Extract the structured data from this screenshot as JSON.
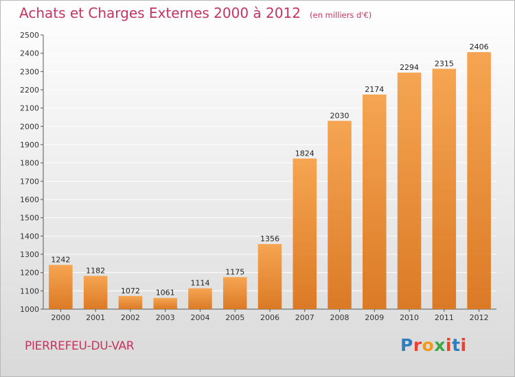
{
  "chart_data": {
    "type": "bar",
    "title": "Achats et Charges Externes 2000 à 2012",
    "subtitle": "(en milliers d'€)",
    "categories": [
      "2000",
      "2001",
      "2002",
      "2003",
      "2004",
      "2005",
      "2006",
      "2007",
      "2008",
      "2009",
      "2010",
      "2011",
      "2012"
    ],
    "values": [
      1242,
      1182,
      1072,
      1061,
      1114,
      1175,
      1356,
      1824,
      2030,
      2174,
      2294,
      2315,
      2406
    ],
    "ylim": [
      1000,
      2500
    ],
    "yticks": [
      1000,
      1100,
      1200,
      1300,
      1400,
      1500,
      1600,
      1700,
      1800,
      1900,
      2000,
      2100,
      2200,
      2300,
      2400,
      2500
    ],
    "grid": true,
    "bar_color_top": "#f6a552",
    "bar_color_bottom": "#db7a26"
  },
  "footer": {
    "commune": "PIERREFEU-DU-VAR",
    "logo_text": "Proxiti",
    "logo_colors": [
      "#2d7fc1",
      "#e8412c",
      "#f39a1e",
      "#3aa844",
      "#e8412c",
      "#2d7fc1",
      "#e8412c"
    ]
  },
  "colors": {
    "title": "#c4345f",
    "grid": "#ffffff"
  }
}
